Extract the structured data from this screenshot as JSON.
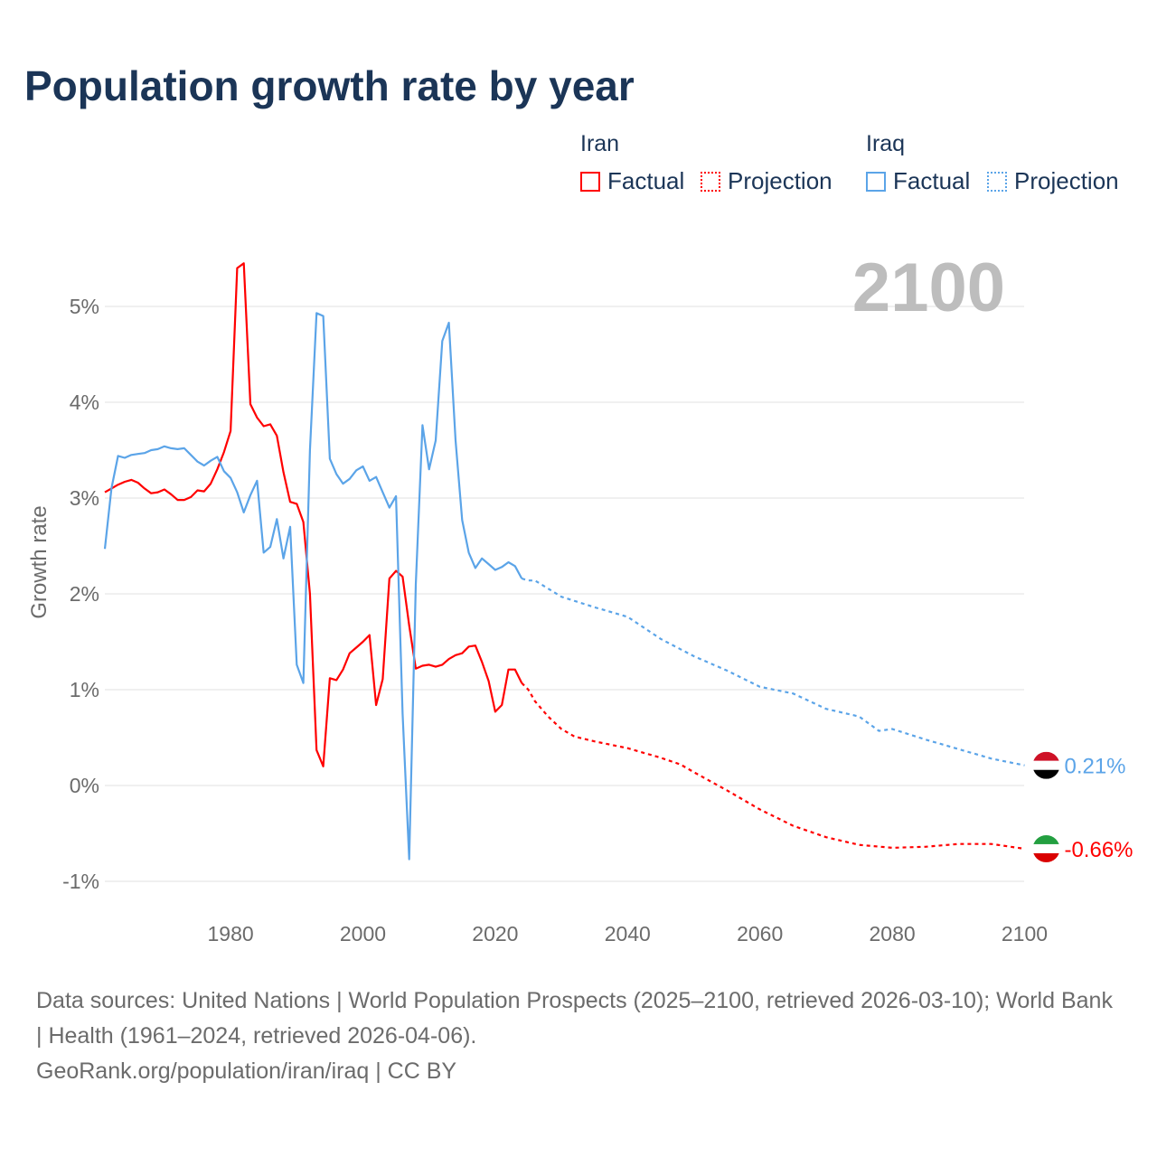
{
  "title": "Population growth rate by year",
  "legend": {
    "groups": [
      {
        "name": "Iran",
        "color": "#ff0000",
        "factual": "Factual",
        "projection": "Projection"
      },
      {
        "name": "Iraq",
        "color": "#5ba4e8",
        "factual": "Factual",
        "projection": "Projection"
      }
    ]
  },
  "current_year": "2100",
  "footer": {
    "sources": "Data sources: United Nations | World Population Prospects (2025–2100, retrieved 2026-03-10); World Bank | Health (1961–2024, retrieved 2026-04-06).",
    "credit": "GeoRank.org/population/iran/iraq | CC BY"
  },
  "chart_data": {
    "type": "line",
    "title": "Population growth rate by year",
    "xlabel": "",
    "ylabel": "Growth rate",
    "xlim": [
      1961,
      2100
    ],
    "ylim": [
      -1.3,
      5.7
    ],
    "x_ticks": [
      1980,
      2000,
      2020,
      2040,
      2060,
      2080,
      2100
    ],
    "x_tick_labels": [
      "1980",
      "2000",
      "2020",
      "2040",
      "2060",
      "2080",
      "2100"
    ],
    "y_ticks": [
      -1,
      0,
      1,
      2,
      3,
      4,
      5
    ],
    "y_tick_labels": [
      "-1%",
      "0%",
      "1%",
      "2%",
      "3%",
      "4%",
      "5%"
    ],
    "grid": true,
    "legend_position": "top-right",
    "series": [
      {
        "name": "Iran",
        "color": "#ff0000",
        "end_label": "-0.66%",
        "factual": {
          "x": [
            1961,
            1962,
            1963,
            1964,
            1965,
            1966,
            1967,
            1968,
            1969,
            1970,
            1971,
            1972,
            1973,
            1974,
            1975,
            1976,
            1977,
            1978,
            1979,
            1980,
            1981,
            1982,
            1983,
            1984,
            1985,
            1986,
            1987,
            1988,
            1989,
            1990,
            1991,
            1992,
            1993,
            1994,
            1995,
            1996,
            1997,
            1998,
            1999,
            2000,
            2001,
            2002,
            2003,
            2004,
            2005,
            2006,
            2007,
            2008,
            2009,
            2010,
            2011,
            2012,
            2013,
            2014,
            2015,
            2016,
            2017,
            2018,
            2019,
            2020,
            2021,
            2022,
            2023,
            2024
          ],
          "y": [
            3.06,
            3.1,
            3.14,
            3.17,
            3.19,
            3.16,
            3.1,
            3.05,
            3.06,
            3.09,
            3.04,
            2.98,
            2.98,
            3.01,
            3.08,
            3.07,
            3.15,
            3.3,
            3.48,
            3.7,
            5.4,
            5.45,
            3.98,
            3.84,
            3.75,
            3.77,
            3.65,
            3.27,
            2.96,
            2.94,
            2.75,
            2.0,
            0.37,
            0.2,
            1.12,
            1.1,
            1.21,
            1.38,
            1.44,
            1.5,
            1.57,
            0.84,
            1.11,
            2.16,
            2.24,
            2.18,
            1.67,
            1.22,
            1.25,
            1.26,
            1.24,
            1.26,
            1.32,
            1.36,
            1.38,
            1.45,
            1.46,
            1.29,
            1.09,
            0.77,
            0.84,
            1.21,
            1.21,
            1.07
          ]
        },
        "projection": {
          "x": [
            2024,
            2025,
            2026,
            2028,
            2030,
            2032,
            2035,
            2040,
            2045,
            2048,
            2050,
            2055,
            2060,
            2065,
            2070,
            2075,
            2080,
            2085,
            2090,
            2095,
            2100
          ],
          "y": [
            1.07,
            1.0,
            0.88,
            0.72,
            0.59,
            0.51,
            0.46,
            0.39,
            0.29,
            0.22,
            0.14,
            -0.05,
            -0.25,
            -0.42,
            -0.54,
            -0.62,
            -0.65,
            -0.64,
            -0.61,
            -0.61,
            -0.66
          ]
        }
      },
      {
        "name": "Iraq",
        "color": "#5ba4e8",
        "end_label": "0.21%",
        "factual": {
          "x": [
            1961,
            1962,
            1963,
            1964,
            1965,
            1966,
            1967,
            1968,
            1969,
            1970,
            1971,
            1972,
            1973,
            1974,
            1975,
            1976,
            1977,
            1978,
            1979,
            1980,
            1981,
            1982,
            1983,
            1984,
            1985,
            1986,
            1987,
            1988,
            1989,
            1990,
            1991,
            1992,
            1993,
            1994,
            1995,
            1996,
            1997,
            1998,
            1999,
            2000,
            2001,
            2002,
            2003,
            2004,
            2005,
            2006,
            2007,
            2008,
            2009,
            2010,
            2011,
            2012,
            2013,
            2014,
            2015,
            2016,
            2017,
            2018,
            2019,
            2020,
            2021,
            2022,
            2023,
            2024
          ],
          "y": [
            2.47,
            3.1,
            3.44,
            3.42,
            3.45,
            3.46,
            3.47,
            3.5,
            3.51,
            3.54,
            3.52,
            3.51,
            3.52,
            3.45,
            3.38,
            3.34,
            3.39,
            3.43,
            3.28,
            3.21,
            3.06,
            2.85,
            3.03,
            3.18,
            2.43,
            2.49,
            2.78,
            2.37,
            2.7,
            1.26,
            1.07,
            3.5,
            4.93,
            4.9,
            3.41,
            3.25,
            3.15,
            3.2,
            3.29,
            3.33,
            3.18,
            3.22,
            3.06,
            2.9,
            3.02,
            0.75,
            -0.77,
            2.1,
            3.76,
            3.3,
            3.6,
            4.64,
            4.83,
            3.6,
            2.77,
            2.43,
            2.27,
            2.37,
            2.31,
            2.25,
            2.28,
            2.33,
            2.29,
            2.16
          ]
        },
        "projection": {
          "x": [
            2024,
            2025,
            2026,
            2030,
            2035,
            2040,
            2045,
            2050,
            2055,
            2060,
            2065,
            2070,
            2075,
            2078,
            2080,
            2085,
            2090,
            2095,
            2100
          ],
          "y": [
            2.16,
            2.14,
            2.14,
            1.97,
            1.86,
            1.76,
            1.53,
            1.35,
            1.2,
            1.03,
            0.96,
            0.8,
            0.72,
            0.57,
            0.59,
            0.48,
            0.38,
            0.28,
            0.21
          ]
        }
      }
    ]
  }
}
